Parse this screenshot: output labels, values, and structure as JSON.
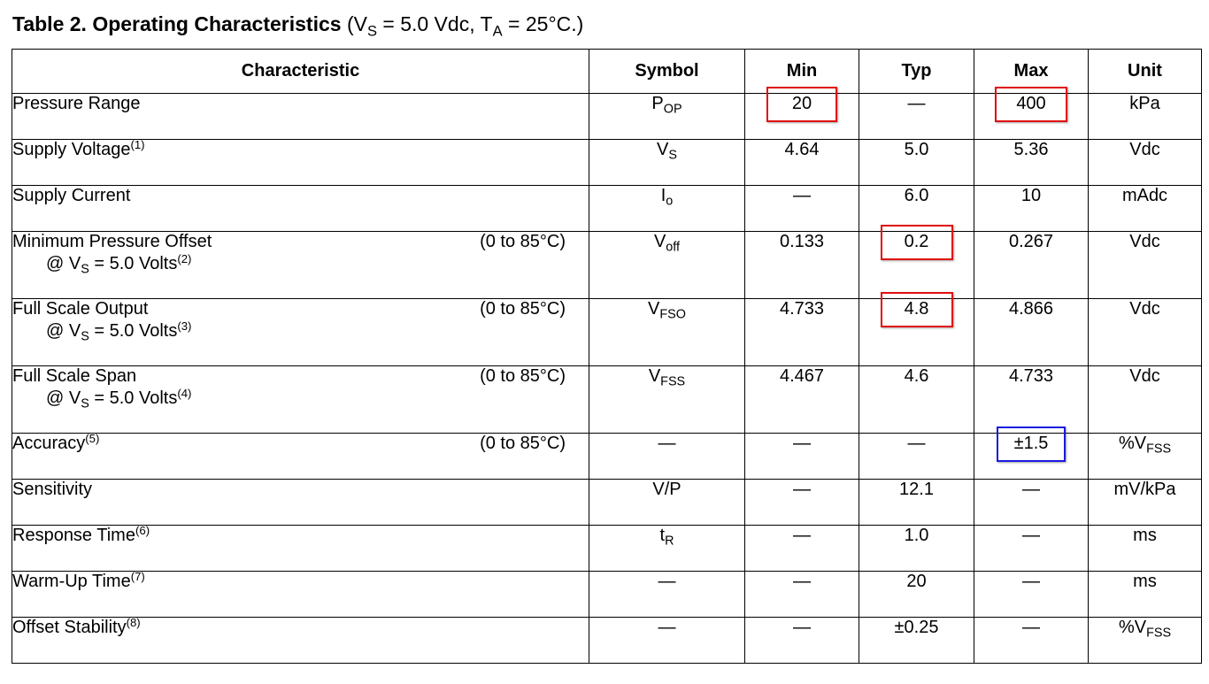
{
  "title": {
    "label": "Table 2. Operating Characteristics",
    "paren_open": "(V",
    "vs_sub": "S",
    "mid": " = 5.0 Vdc, T",
    "ta_sub": "A",
    "end": " = 25°C.)"
  },
  "table": {
    "headers": [
      "Characteristic",
      "Symbol",
      "Min",
      "Typ",
      "Max",
      "Unit"
    ],
    "rows": [
      {
        "char": "Pressure Range",
        "char_sup": "",
        "cond": "",
        "sub_pre": "",
        "sub_sub": "",
        "sub_post": "",
        "sub_sup": "",
        "sym": "P",
        "sym_sub": "OP",
        "min": "20",
        "typ": "—",
        "max": "400",
        "unit": "kPa",
        "unit_sub": ""
      },
      {
        "char": "Supply Voltage",
        "char_sup": "(1)",
        "cond": "",
        "sub_pre": "",
        "sub_sub": "",
        "sub_post": "",
        "sub_sup": "",
        "sym": "V",
        "sym_sub": "S",
        "min": "4.64",
        "typ": "5.0",
        "max": "5.36",
        "unit": "Vdc",
        "unit_sub": ""
      },
      {
        "char": "Supply Current",
        "char_sup": "",
        "cond": "",
        "sub_pre": "",
        "sub_sub": "",
        "sub_post": "",
        "sub_sup": "",
        "sym": "I",
        "sym_sub": "o",
        "min": "—",
        "typ": "6.0",
        "max": "10",
        "unit": "mAdc",
        "unit_sub": ""
      },
      {
        "char": "Minimum Pressure Offset",
        "char_sup": "",
        "cond": "(0 to 85°C)",
        "sub_pre": "@ V",
        "sub_sub": "S",
        "sub_post": " = 5.0 Volts",
        "sub_sup": "(2)",
        "sym": "V",
        "sym_sub": "off",
        "min": "0.133",
        "typ": "0.2",
        "max": "0.267",
        "unit": "Vdc",
        "unit_sub": ""
      },
      {
        "char": "Full Scale Output",
        "char_sup": "",
        "cond": "(0 to 85°C)",
        "sub_pre": "@ V",
        "sub_sub": "S",
        "sub_post": " = 5.0 Volts",
        "sub_sup": "(3)",
        "sym": "V",
        "sym_sub": "FSO",
        "min": "4.733",
        "typ": "4.8",
        "max": "4.866",
        "unit": "Vdc",
        "unit_sub": ""
      },
      {
        "char": "Full Scale Span",
        "char_sup": "",
        "cond": "(0 to 85°C)",
        "sub_pre": "@ V",
        "sub_sub": "S",
        "sub_post": " = 5.0 Volts",
        "sub_sup": "(4)",
        "sym": "V",
        "sym_sub": "FSS",
        "min": "4.467",
        "typ": "4.6",
        "max": "4.733",
        "unit": "Vdc",
        "unit_sub": ""
      },
      {
        "char": "Accuracy",
        "char_sup": "(5)",
        "cond": "(0 to 85°C)",
        "sub_pre": "",
        "sub_sub": "",
        "sub_post": "",
        "sub_sup": "",
        "sym": "—",
        "sym_sub": "",
        "min": "—",
        "typ": "—",
        "max": "±1.5",
        "unit": "%V",
        "unit_sub": "FSS"
      },
      {
        "char": "Sensitivity",
        "char_sup": "",
        "cond": "",
        "sub_pre": "",
        "sub_sub": "",
        "sub_post": "",
        "sub_sup": "",
        "sym": "V/P",
        "sym_sub": "",
        "min": "—",
        "typ": "12.1",
        "max": "—",
        "unit": "mV/kPa",
        "unit_sub": ""
      },
      {
        "char": "Response Time",
        "char_sup": "(6)",
        "cond": "",
        "sub_pre": "",
        "sub_sub": "",
        "sub_post": "",
        "sub_sup": "",
        "sym": "t",
        "sym_sub": "R",
        "min": "—",
        "typ": "1.0",
        "max": "—",
        "unit": "ms",
        "unit_sub": ""
      },
      {
        "char": "Warm-Up Time",
        "char_sup": "(7)",
        "cond": "",
        "sub_pre": "",
        "sub_sub": "",
        "sub_post": "",
        "sub_sup": "",
        "sym": "—",
        "sym_sub": "",
        "min": "—",
        "typ": "20",
        "max": "—",
        "unit": "ms",
        "unit_sub": ""
      },
      {
        "char": "Offset Stability",
        "char_sup": "(8)",
        "cond": "",
        "sub_pre": "",
        "sub_sub": "",
        "sub_post": "",
        "sub_sup": "",
        "sym": "—",
        "sym_sub": "",
        "min": "—",
        "typ": "±0.25",
        "max": "—",
        "unit": "%V",
        "unit_sub": "FSS"
      }
    ]
  },
  "highlight_colors": {
    "red": "#e01010",
    "blue": "#1a1ae0"
  }
}
